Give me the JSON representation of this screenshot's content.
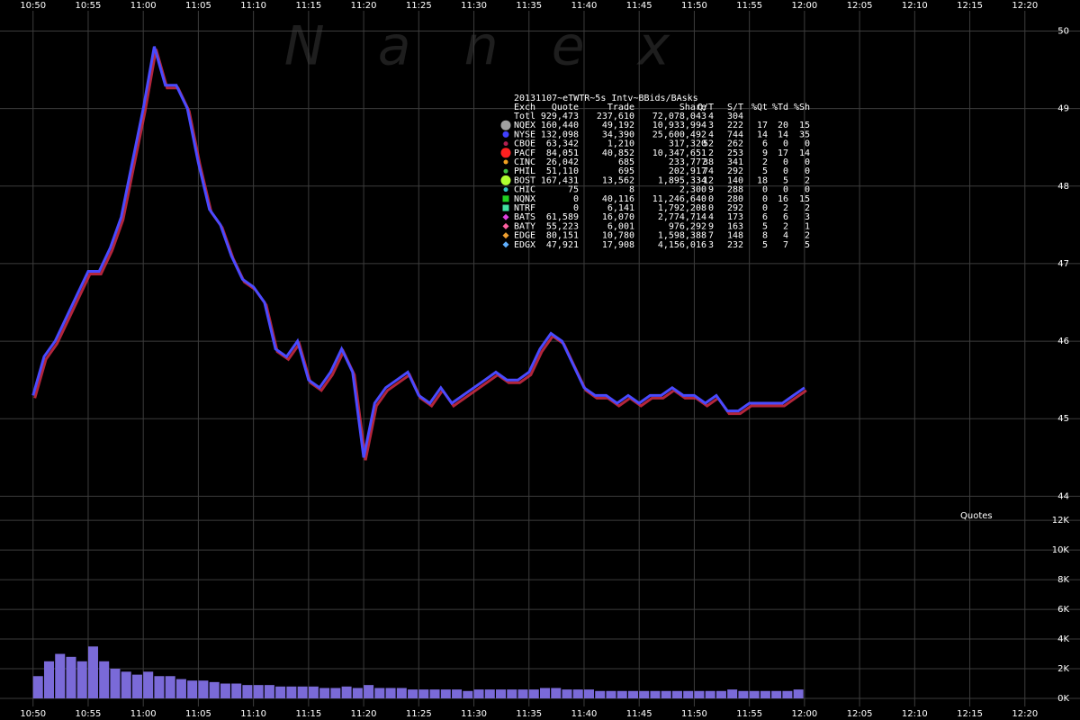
{
  "watermark": "N a n e x",
  "chart_data": [
    {
      "type": "line",
      "color": "#4a4aff",
      "color2": "#e0304a",
      "xlim": [
        "10:47",
        "12:25"
      ],
      "xticks": [
        "10:50",
        "10:55",
        "11:00",
        "11:05",
        "11:10",
        "11:15",
        "11:20",
        "11:25",
        "11:30",
        "11:35",
        "11:40",
        "11:45",
        "11:50",
        "11:55",
        "12:00",
        "12:05",
        "12:10",
        "12:15",
        "12:20"
      ],
      "ylim": [
        43.9,
        50.4
      ],
      "yticks": [
        44,
        45,
        46,
        47,
        48,
        49,
        50
      ],
      "grid": true,
      "x": [
        "10:50",
        "10:51",
        "10:52",
        "10:53",
        "10:54",
        "10:55",
        "10:56",
        "10:57",
        "10:58",
        "10:59",
        "11:00",
        "11:01",
        "11:02",
        "11:03",
        "11:04",
        "11:05",
        "11:06",
        "11:07",
        "11:08",
        "11:09",
        "11:10",
        "11:11",
        "11:12",
        "11:13",
        "11:14",
        "11:15",
        "11:16",
        "11:17",
        "11:18",
        "11:19",
        "11:20",
        "11:21",
        "11:22",
        "11:23",
        "11:24",
        "11:25",
        "11:26",
        "11:27",
        "11:28",
        "11:29",
        "11:30",
        "11:31",
        "11:32",
        "11:33",
        "11:34",
        "11:35",
        "11:36",
        "11:37",
        "11:38",
        "11:39",
        "11:40",
        "11:41",
        "11:42",
        "11:43",
        "11:44",
        "11:45",
        "11:46",
        "11:47",
        "11:48",
        "11:49",
        "11:50",
        "11:51",
        "11:52",
        "11:53",
        "11:54",
        "11:55",
        "11:56",
        "11:57",
        "11:58",
        "11:59",
        "12:00"
      ],
      "values": [
        45.3,
        45.8,
        46.0,
        46.3,
        46.6,
        46.9,
        46.9,
        47.2,
        47.6,
        48.3,
        49.0,
        49.8,
        49.3,
        49.3,
        49.0,
        48.3,
        47.7,
        47.5,
        47.1,
        46.8,
        46.7,
        46.5,
        45.9,
        45.8,
        46.0,
        45.5,
        45.4,
        45.6,
        45.9,
        45.6,
        44.5,
        45.2,
        45.4,
        45.5,
        45.6,
        45.3,
        45.2,
        45.4,
        45.2,
        45.3,
        45.4,
        45.5,
        45.6,
        45.5,
        45.5,
        45.6,
        45.9,
        46.1,
        46.0,
        45.7,
        45.4,
        45.3,
        45.3,
        45.2,
        45.3,
        45.2,
        45.3,
        45.3,
        45.4,
        45.3,
        45.3,
        45.2,
        45.3,
        45.1,
        45.1,
        45.2,
        45.2,
        45.2,
        45.2,
        45.3,
        45.4
      ],
      "table": {
        "title": "20131107~eTWTR~5s Intv~BBids/BAsks",
        "columns": [
          "Exch",
          "Quote",
          "Trade",
          "Share",
          "Q/T",
          "S/T",
          "%Qt",
          "%Td",
          "%Sh"
        ],
        "rows": [
          {
            "cells": [
              "Totl",
              "929,473",
              "237,610",
              "72,078,043",
              "4",
              "304"
            ]
          },
          {
            "cells": [
              "NQEX",
              "160,440",
              "49,192",
              "10,933,994",
              "3",
              "222",
              "17",
              "20",
              "15"
            ],
            "color": "#a0a0a0",
            "shape": "circle",
            "size": "large"
          },
          {
            "cells": [
              "NYSE",
              "132,098",
              "34,390",
              "25,600,492",
              "4",
              "744",
              "14",
              "14",
              "35"
            ],
            "color": "#4040ff",
            "shape": "circle",
            "size": "medium"
          },
          {
            "cells": [
              "CBOE",
              "63,342",
              "1,210",
              "317,320",
              "52",
              "262",
              "6",
              "0",
              "0"
            ],
            "color": "#b02050",
            "shape": "circle",
            "size": "small"
          },
          {
            "cells": [
              "PACF",
              "84,051",
              "40,852",
              "10,347,651",
              "2",
              "253",
              "9",
              "17",
              "14"
            ],
            "color": "#ff2020",
            "shape": "circle",
            "size": "large"
          },
          {
            "cells": [
              "CINC",
              "26,042",
              "685",
              "233,777",
              "38",
              "341",
              "2",
              "0",
              "0"
            ],
            "color": "#f0a020",
            "shape": "circle",
            "size": "small"
          },
          {
            "cells": [
              "PHIL",
              "51,110",
              "695",
              "202,917",
              "74",
              "292",
              "5",
              "0",
              "0"
            ],
            "color": "#40c040",
            "shape": "circle",
            "size": "small"
          },
          {
            "cells": [
              "BOST",
              "167,431",
              "13,562",
              "1,895,334",
              "12",
              "140",
              "18",
              "5",
              "2"
            ],
            "color": "#b0ff30",
            "shape": "circle",
            "size": "large"
          },
          {
            "cells": [
              "CHIC",
              "75",
              "8",
              "2,300",
              "9",
              "288",
              "0",
              "0",
              "0"
            ],
            "color": "#30c0c0",
            "shape": "circle",
            "size": "small"
          },
          {
            "cells": [
              "NQNX",
              "0",
              "40,116",
              "11,246,640",
              "0",
              "280",
              "0",
              "16",
              "15"
            ],
            "color": "#20d020",
            "shape": "square",
            "size": "medium"
          },
          {
            "cells": [
              "NTRF",
              "0",
              "6,141",
              "1,792,208",
              "0",
              "292",
              "0",
              "2",
              "2"
            ],
            "color": "#40e0a0",
            "shape": "square",
            "size": "medium"
          },
          {
            "cells": [
              "BATS",
              "61,589",
              "16,070",
              "2,774,714",
              "4",
              "173",
              "6",
              "6",
              "3"
            ],
            "color": "#e040e0",
            "shape": "diamond",
            "size": "medium"
          },
          {
            "cells": [
              "BATY",
              "55,223",
              "6,001",
              "976,292",
              "9",
              "163",
              "5",
              "2",
              "1"
            ],
            "color": "#ff60a0",
            "shape": "diamond",
            "size": "medium"
          },
          {
            "cells": [
              "EDGE",
              "80,151",
              "10,780",
              "1,598,388",
              "7",
              "148",
              "8",
              "4",
              "2"
            ],
            "color": "#f0a030",
            "shape": "diamond",
            "size": "medium"
          },
          {
            "cells": [
              "EDGX",
              "47,921",
              "17,908",
              "4,156,016",
              "3",
              "232",
              "5",
              "7",
              "5"
            ],
            "color": "#60b0ff",
            "shape": "diamond",
            "size": "medium"
          }
        ]
      }
    },
    {
      "type": "bar",
      "title": "Quotes",
      "color": "#7a6ad8",
      "xlim": [
        "10:47",
        "12:25"
      ],
      "ylim": [
        -850,
        12800
      ],
      "yticks": [
        {
          "value": 0,
          "label": "0K"
        },
        {
          "value": 2000,
          "label": "2K"
        },
        {
          "value": 4000,
          "label": "4K"
        },
        {
          "value": 6000,
          "label": "6K"
        },
        {
          "value": 8000,
          "label": "8K"
        },
        {
          "value": 10000,
          "label": "10K"
        },
        {
          "value": 12000,
          "label": "12K"
        }
      ],
      "grid": true,
      "x": [
        "10:50",
        "10:51",
        "10:52",
        "10:53",
        "10:54",
        "10:55",
        "10:56",
        "10:57",
        "10:58",
        "10:59",
        "11:00",
        "11:01",
        "11:02",
        "11:03",
        "11:04",
        "11:05",
        "11:06",
        "11:07",
        "11:08",
        "11:09",
        "11:10",
        "11:11",
        "11:12",
        "11:13",
        "11:14",
        "11:15",
        "11:16",
        "11:17",
        "11:18",
        "11:19",
        "11:20",
        "11:21",
        "11:22",
        "11:23",
        "11:24",
        "11:25",
        "11:26",
        "11:27",
        "11:28",
        "11:29",
        "11:30",
        "11:31",
        "11:32",
        "11:33",
        "11:34",
        "11:35",
        "11:36",
        "11:37",
        "11:38",
        "11:39",
        "11:40",
        "11:41",
        "11:42",
        "11:43",
        "11:44",
        "11:45",
        "11:46",
        "11:47",
        "11:48",
        "11:49",
        "11:50",
        "11:51",
        "11:52",
        "11:53",
        "11:54",
        "11:55",
        "11:56",
        "11:57",
        "11:58",
        "11:59"
      ],
      "values": [
        1500,
        2500,
        3000,
        2800,
        2500,
        3500,
        2500,
        2000,
        1800,
        1600,
        1800,
        1500,
        1500,
        1300,
        1200,
        1200,
        1100,
        1000,
        1000,
        900,
        900,
        900,
        800,
        800,
        800,
        800,
        700,
        700,
        800,
        700,
        900,
        700,
        700,
        700,
        600,
        600,
        600,
        600,
        600,
        500,
        600,
        600,
        600,
        600,
        600,
        600,
        700,
        700,
        600,
        600,
        600,
        500,
        500,
        500,
        500,
        500,
        500,
        500,
        500,
        500,
        500,
        500,
        500,
        600,
        500,
        500,
        500,
        500,
        500,
        600
      ]
    }
  ]
}
